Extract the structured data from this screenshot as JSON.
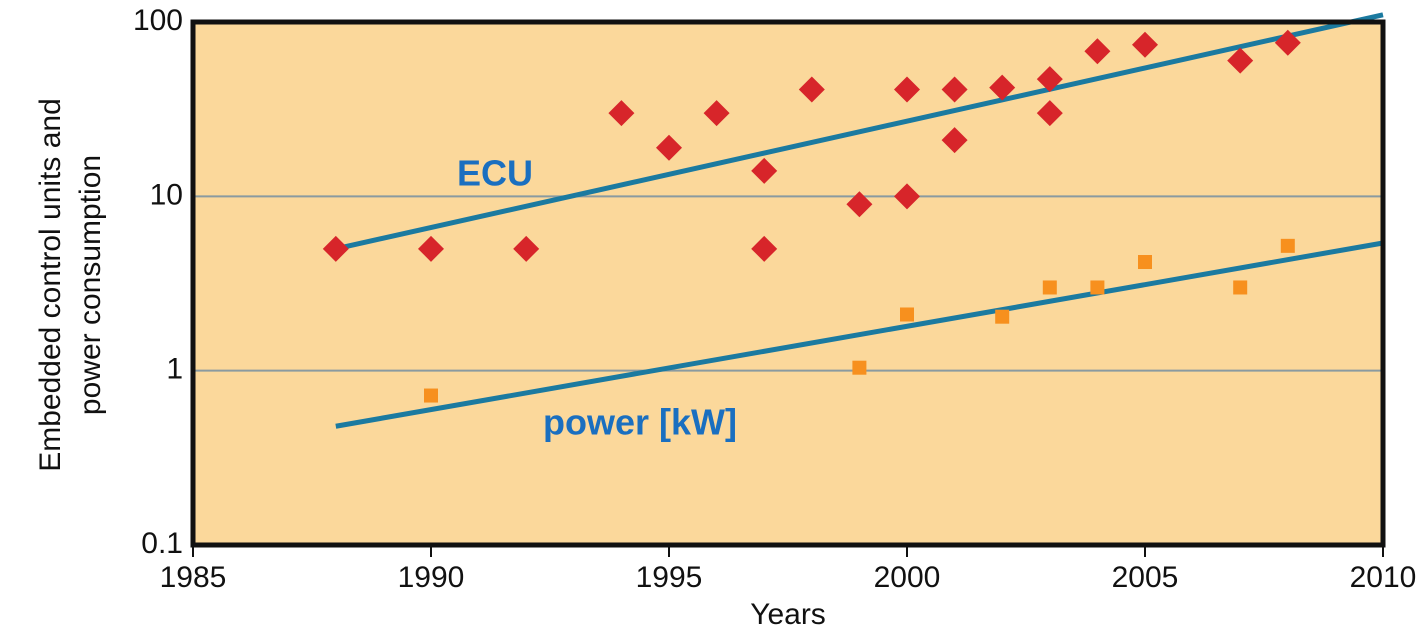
{
  "chart_data": {
    "type": "scatter",
    "x_label": "Years",
    "y_label": [
      "Embedded control units and",
      "power consumption"
    ],
    "log_y": true,
    "grid": true,
    "background": "#fbd89b",
    "xlim": [
      1985,
      2010
    ],
    "xticks": [
      1985,
      1990,
      1995,
      2000,
      2005,
      2010
    ],
    "ylim": [
      0.1,
      100
    ],
    "yticks": [
      0.1,
      1,
      10,
      100
    ],
    "series": [
      {
        "name": "ECU",
        "color": "#d7252a",
        "marker": "diamond",
        "label_color": "#1a6fc0",
        "x": [
          1988,
          1990,
          1992,
          1994,
          1995,
          1996,
          1997,
          1997,
          1998,
          1999,
          2000,
          2000,
          2001,
          2001,
          2002,
          2003,
          2003,
          2004,
          2005,
          2007,
          2008
        ],
        "values": [
          5,
          5,
          5,
          30,
          19,
          30,
          14,
          5,
          41,
          9,
          41,
          10,
          41,
          21,
          42,
          47,
          30,
          68,
          74,
          60,
          76
        ],
        "trend": {
          "color": "#1b7aa0",
          "x": [
            1988,
            2010
          ],
          "values": [
            5,
            110
          ]
        }
      },
      {
        "name": "power [kW]",
        "color": "#f7901e",
        "marker": "square",
        "label_color": "#1a6fc0",
        "x": [
          1990,
          1999,
          2000,
          2002,
          2003,
          2004,
          2005,
          2007,
          2008
        ],
        "values": [
          0.72,
          1.04,
          2.1,
          2.04,
          3.0,
          3.0,
          4.2,
          3.0,
          5.2
        ],
        "trend": {
          "color": "#1b7aa0",
          "x": [
            1988,
            2010
          ],
          "values": [
            0.48,
            5.4
          ]
        }
      }
    ]
  }
}
